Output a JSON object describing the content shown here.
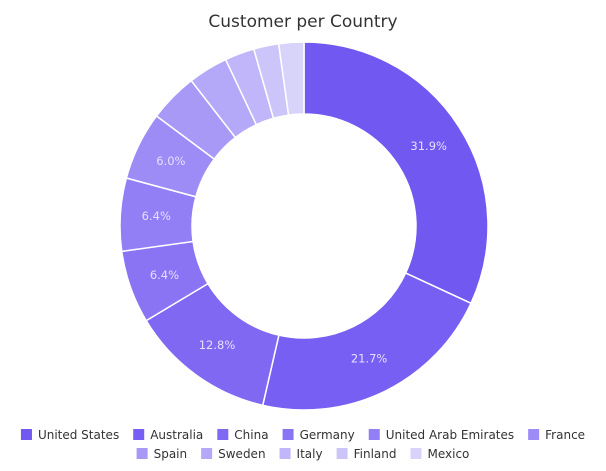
{
  "chart_data": {
    "type": "pie",
    "variant": "donut",
    "title": "Customer per Country",
    "categories": [
      "United States",
      "Australia",
      "China",
      "Germany",
      "United Arab Emirates",
      "France",
      "Spain",
      "Sweden",
      "Italy",
      "Finland",
      "Mexico"
    ],
    "values": [
      31.9,
      21.7,
      12.8,
      6.4,
      6.4,
      6.0,
      4.3,
      3.5,
      2.6,
      2.2,
      2.2
    ],
    "value_labels": [
      "31.9%",
      "21.7%",
      "12.8%",
      "6.4%",
      "6.4%",
      "6.0%",
      "",
      "",
      "",
      "",
      ""
    ],
    "colors": [
      "#7058f0",
      "#765ff2",
      "#8068f3",
      "#8a74f4",
      "#937ff5",
      "#9d8cf6",
      "#a899f7",
      "#b4a8f8",
      "#c0b6f9",
      "#ccc5fa",
      "#d8d3fb"
    ],
    "legend_position": "bottom"
  }
}
